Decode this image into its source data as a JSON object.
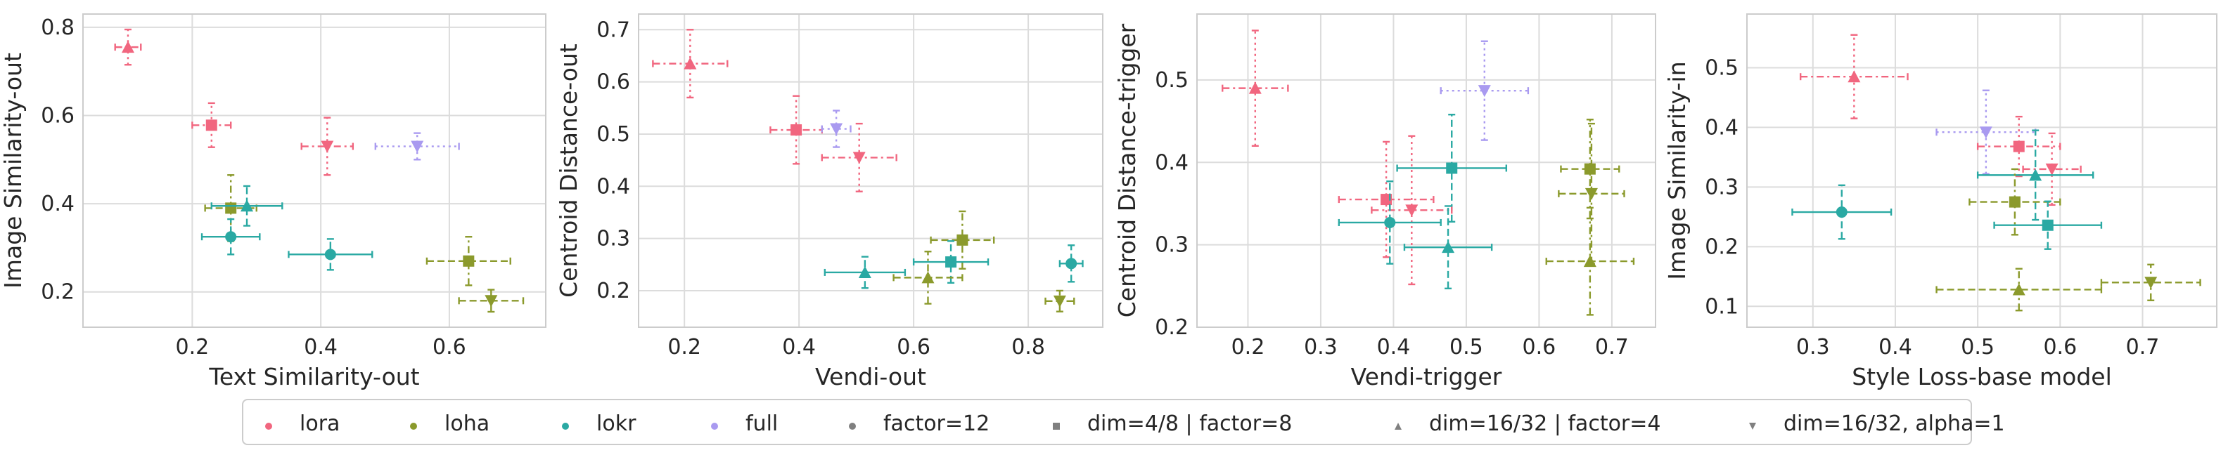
{
  "colors": {
    "lora": "#f1667f",
    "loha": "#8b9a2c",
    "lokr": "#2aa9a3",
    "full": "#a99af0",
    "neutral": "#808080"
  },
  "legend": {
    "methods": [
      {
        "label": "lora",
        "color": "#f1667f"
      },
      {
        "label": "loha",
        "color": "#8b9a2c"
      },
      {
        "label": "lokr",
        "color": "#2aa9a3"
      },
      {
        "label": "full",
        "color": "#a99af0"
      }
    ],
    "shapes": [
      {
        "label": "factor=12",
        "marker": "circle"
      },
      {
        "label": "dim=4/8 | factor=8",
        "marker": "square"
      },
      {
        "label": "dim=16/32 | factor=4",
        "marker": "triangle"
      },
      {
        "label": "dim=16/32, alpha=1",
        "marker": "triangle-down"
      }
    ]
  },
  "chart_data": [
    {
      "type": "scatter",
      "xlabel": "Text Similarity-out",
      "ylabel": "Image Similarity-out",
      "xlim": [
        0.03,
        0.75
      ],
      "ylim": [
        0.12,
        0.83
      ],
      "xticks": [
        0.2,
        0.4,
        0.6
      ],
      "yticks": [
        0.2,
        0.4,
        0.6,
        0.8
      ],
      "grid": true,
      "points": [
        {
          "method": "lora",
          "marker": "triangle",
          "x": 0.1,
          "y": 0.755,
          "xerr": 0.02,
          "yerr": 0.04
        },
        {
          "method": "lora",
          "marker": "square",
          "x": 0.23,
          "y": 0.578,
          "xerr": 0.03,
          "yerr": 0.05
        },
        {
          "method": "lora",
          "marker": "triangle-down",
          "x": 0.41,
          "y": 0.53,
          "xerr": 0.04,
          "yerr": 0.065
        },
        {
          "method": "full",
          "marker": "triangle-down",
          "x": 0.55,
          "y": 0.53,
          "xerr": 0.065,
          "yerr": 0.03
        },
        {
          "method": "loha",
          "marker": "square",
          "x": 0.26,
          "y": 0.39,
          "xerr": 0.04,
          "yerr": 0.075
        },
        {
          "method": "lokr",
          "marker": "triangle",
          "x": 0.285,
          "y": 0.395,
          "xerr": 0.055,
          "yerr": 0.045
        },
        {
          "method": "lokr",
          "marker": "circle",
          "x": 0.26,
          "y": 0.325,
          "xerr": 0.045,
          "yerr": 0.04
        },
        {
          "method": "lokr",
          "marker": "circle",
          "x": 0.415,
          "y": 0.285,
          "xerr": 0.065,
          "yerr": 0.035
        },
        {
          "method": "loha",
          "marker": "square",
          "x": 0.63,
          "y": 0.27,
          "xerr": 0.065,
          "yerr": 0.055
        },
        {
          "method": "loha",
          "marker": "triangle-down",
          "x": 0.665,
          "y": 0.18,
          "xerr": 0.05,
          "yerr": 0.025
        }
      ]
    },
    {
      "type": "scatter",
      "xlabel": "Vendi-out",
      "ylabel": "Centroid Distance-out",
      "xlim": [
        0.12,
        0.93
      ],
      "ylim": [
        0.13,
        0.73
      ],
      "xticks": [
        0.2,
        0.4,
        0.6,
        0.8
      ],
      "yticks": [
        0.2,
        0.3,
        0.4,
        0.5,
        0.6,
        0.7
      ],
      "grid": true,
      "points": [
        {
          "method": "lora",
          "marker": "triangle",
          "x": 0.21,
          "y": 0.635,
          "xerr": 0.065,
          "yerr": 0.065
        },
        {
          "method": "lora",
          "marker": "square",
          "x": 0.395,
          "y": 0.508,
          "xerr": 0.045,
          "yerr": 0.065
        },
        {
          "method": "full",
          "marker": "triangle-down",
          "x": 0.465,
          "y": 0.51,
          "xerr": 0.025,
          "yerr": 0.035
        },
        {
          "method": "lora",
          "marker": "triangle-down",
          "x": 0.505,
          "y": 0.455,
          "xerr": 0.065,
          "yerr": 0.065
        },
        {
          "method": "loha",
          "marker": "square",
          "x": 0.685,
          "y": 0.297,
          "xerr": 0.055,
          "yerr": 0.055
        },
        {
          "method": "lokr",
          "marker": "square",
          "x": 0.665,
          "y": 0.255,
          "xerr": 0.065,
          "yerr": 0.04
        },
        {
          "method": "lokr",
          "marker": "triangle",
          "x": 0.515,
          "y": 0.235,
          "xerr": 0.07,
          "yerr": 0.03
        },
        {
          "method": "loha",
          "marker": "triangle",
          "x": 0.625,
          "y": 0.225,
          "xerr": 0.06,
          "yerr": 0.05
        },
        {
          "method": "lokr",
          "marker": "circle",
          "x": 0.875,
          "y": 0.252,
          "xerr": 0.02,
          "yerr": 0.035
        },
        {
          "method": "loha",
          "marker": "triangle-down",
          "x": 0.855,
          "y": 0.18,
          "xerr": 0.025,
          "yerr": 0.02
        }
      ]
    },
    {
      "type": "scatter",
      "xlabel": "Vendi-trigger",
      "ylabel": "Centroid Distance-trigger",
      "xlim": [
        0.13,
        0.76
      ],
      "ylim": [
        0.2,
        0.58
      ],
      "xticks": [
        0.2,
        0.3,
        0.4,
        0.5,
        0.6,
        0.7
      ],
      "yticks": [
        0.2,
        0.3,
        0.4,
        0.5
      ],
      "grid": true,
      "points": [
        {
          "method": "lora",
          "marker": "triangle",
          "x": 0.21,
          "y": 0.49,
          "xerr": 0.045,
          "yerr": 0.07
        },
        {
          "method": "full",
          "marker": "triangle-down",
          "x": 0.525,
          "y": 0.487,
          "xerr": 0.06,
          "yerr": 0.06
        },
        {
          "method": "lokr",
          "marker": "square",
          "x": 0.48,
          "y": 0.393,
          "xerr": 0.075,
          "yerr": 0.065
        },
        {
          "method": "loha",
          "marker": "square",
          "x": 0.67,
          "y": 0.392,
          "xerr": 0.04,
          "yerr": 0.06
        },
        {
          "method": "loha",
          "marker": "triangle-down",
          "x": 0.672,
          "y": 0.362,
          "xerr": 0.045,
          "yerr": 0.085
        },
        {
          "method": "lora",
          "marker": "square",
          "x": 0.39,
          "y": 0.355,
          "xerr": 0.065,
          "yerr": 0.07
        },
        {
          "method": "lora",
          "marker": "triangle-down",
          "x": 0.425,
          "y": 0.342,
          "xerr": 0.055,
          "yerr": 0.09
        },
        {
          "method": "lokr",
          "marker": "circle",
          "x": 0.395,
          "y": 0.327,
          "xerr": 0.07,
          "yerr": 0.05
        },
        {
          "method": "lokr",
          "marker": "triangle",
          "x": 0.475,
          "y": 0.297,
          "xerr": 0.06,
          "yerr": 0.05
        },
        {
          "method": "loha",
          "marker": "triangle",
          "x": 0.67,
          "y": 0.28,
          "xerr": 0.06,
          "yerr": 0.065
        }
      ]
    },
    {
      "type": "scatter",
      "xlabel": "Style Loss-base model",
      "ylabel": "Image Similarity-in",
      "xlim": [
        0.22,
        0.79
      ],
      "ylim": [
        0.065,
        0.59
      ],
      "xticks": [
        0.3,
        0.4,
        0.5,
        0.6,
        0.7
      ],
      "yticks": [
        0.1,
        0.2,
        0.3,
        0.4,
        0.5
      ],
      "grid": true,
      "points": [
        {
          "method": "lora",
          "marker": "triangle",
          "x": 0.35,
          "y": 0.485,
          "xerr": 0.065,
          "yerr": 0.07
        },
        {
          "method": "full",
          "marker": "triangle-down",
          "x": 0.51,
          "y": 0.392,
          "xerr": 0.06,
          "yerr": 0.07
        },
        {
          "method": "lora",
          "marker": "square",
          "x": 0.55,
          "y": 0.368,
          "xerr": 0.05,
          "yerr": 0.05
        },
        {
          "method": "lora",
          "marker": "triangle-down",
          "x": 0.59,
          "y": 0.33,
          "xerr": 0.035,
          "yerr": 0.06
        },
        {
          "method": "lokr",
          "marker": "triangle",
          "x": 0.57,
          "y": 0.32,
          "xerr": 0.07,
          "yerr": 0.075
        },
        {
          "method": "loha",
          "marker": "square",
          "x": 0.545,
          "y": 0.275,
          "xerr": 0.055,
          "yerr": 0.055
        },
        {
          "method": "lokr",
          "marker": "circle",
          "x": 0.335,
          "y": 0.258,
          "xerr": 0.06,
          "yerr": 0.045
        },
        {
          "method": "lokr",
          "marker": "square",
          "x": 0.585,
          "y": 0.236,
          "xerr": 0.065,
          "yerr": 0.04
        },
        {
          "method": "loha",
          "marker": "triangle-down",
          "x": 0.71,
          "y": 0.14,
          "xerr": 0.06,
          "yerr": 0.03
        },
        {
          "method": "loha",
          "marker": "triangle",
          "x": 0.55,
          "y": 0.128,
          "xerr": 0.1,
          "yerr": 0.035
        }
      ]
    }
  ]
}
